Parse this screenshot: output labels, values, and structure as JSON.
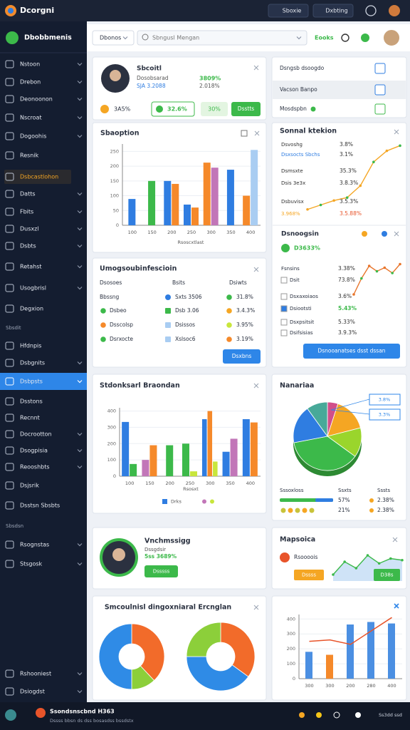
{
  "topbar": {
    "brand": "Dcorgni",
    "buttons": [
      "Sboxie",
      "Dxbting"
    ]
  },
  "header": {
    "tab": "Dbonos",
    "search": "Sbngusl Mengan",
    "status": "Eooks"
  },
  "sidebar": {
    "title": "Dbobbmenis",
    "items": [
      "Nstoon",
      "Drebon",
      "Deonoonon",
      "Nscroat",
      "Dogoohis",
      "Resnik",
      "Dsbcastlohon",
      "Datts",
      "Fbits",
      "Dusxzl",
      "Dsbts",
      "Retahst",
      "Usogbrisl",
      "Degxion"
    ],
    "section1": "Sbsdit",
    "items2": [
      "Hfdnpis",
      "Dsbgnits",
      "Dsbpsts",
      "Dsstons",
      "Recnnt",
      "Docrootton",
      "Dsogpisia",
      "Reooshbts",
      "Dsjsrik",
      "Dsstsn Sbsbts"
    ],
    "section2": "Sbsdsn",
    "items3": [
      "Rsognstas",
      "Stsgosk"
    ],
    "footer": [
      "Rshooniest",
      "Dsiogdst"
    ]
  },
  "profile_card": {
    "name": "Sbcoitl",
    "line1": "Dosobsarad",
    "line2": "SJA 3.2088",
    "stat1": "3809%",
    "stat2": "2.018%",
    "chips": [
      "3A5%",
      "32.6%",
      "30%",
      "Dsstts"
    ]
  },
  "quick_card": {
    "rows": [
      "Dsngsb dsoogdo",
      "Vacson Banpo",
      "Mosdspbn"
    ]
  },
  "signal_card": {
    "title": "Sonnal ktekion",
    "rows": [
      [
        "Dsvoshg",
        "3.8%"
      ],
      [
        "Dsxsocts Sbchs",
        "3.1%"
      ],
      [
        "Dsmsxte",
        "35.3%"
      ],
      [
        "Dsis 3e3x",
        "3.8.3%"
      ],
      [
        "Dsbuvisx",
        "3.5.3%"
      ],
      [
        "3.968%",
        "3.5.88%"
      ]
    ],
    "section": "Dsnoogsin",
    "section_stat": "D3633%",
    "rows2": [
      [
        "Fsnsins",
        "3.38%"
      ],
      [
        "Dsit",
        "73.8%"
      ],
      [
        "Dsxaxoiaos",
        "3.6%"
      ],
      [
        "Dsiootsti",
        "5.43%"
      ],
      [
        "Dsxpsitsit",
        "5.33%"
      ],
      [
        "Dsifsisias",
        "3.9.3%"
      ]
    ],
    "button": "Dsnooanatses dsst dssan"
  },
  "table_card": {
    "title": "Umogsoubinfescioin",
    "headers": [
      "Dsosoes",
      "Bsits",
      "Dsiwts"
    ],
    "rows": [
      [
        "Bbssng",
        "Sxts 3506",
        "31.8%"
      ],
      [
        "Dsbeo",
        "Dsb 3.06",
        "3.4.3%"
      ],
      [
        "Dsscolsp",
        "Dsissos",
        "3.95%"
      ],
      [
        "Dsrxocte",
        "Xslsoc6",
        "3.19%"
      ]
    ],
    "button": "Dsxbns"
  },
  "pie_card": {
    "title": "Nanariaa",
    "callouts": [
      "3.8%",
      "3.3%"
    ],
    "headers": [
      "Sssoxloss",
      "Ssxts",
      "Sssts"
    ],
    "rows": [
      [
        "57%",
        "2.38%"
      ],
      [
        "21%",
        "2.38%"
      ]
    ]
  },
  "person_card": {
    "title": "Vnchmssigg",
    "sub": "Dssgdsir",
    "stat": "5ss 3689%",
    "button": "Dsssss"
  },
  "map_card": {
    "title": "Mapsoica",
    "stat": "Rsoooois",
    "button1": "Dssss",
    "button2": "D38s"
  },
  "donut_card": {
    "title": "Smcoulnisl dingoxniaral Ercnglan"
  },
  "bottombar": {
    "title": "Ssondsnscbnd H363",
    "sub": "Dssss bbsn ds dss bosasdss bssdstx",
    "right": "Ss3dd ssd"
  },
  "chart_data": [
    {
      "type": "bar",
      "title": "Sbaoption",
      "x_label": "Rsoscxtlast",
      "categories": [
        "100",
        "150",
        "200",
        "250",
        "300",
        "350",
        "400"
      ],
      "ylim": [
        0,
        275
      ],
      "yticks": [
        0,
        50,
        100,
        150,
        200,
        250
      ],
      "series": [
        {
          "color": "#2f7de1",
          "values": [
            89,
            null,
            150,
            70,
            null,
            188,
            null
          ]
        },
        {
          "color": "#3cb94a",
          "values": [
            null,
            150,
            null,
            null,
            null,
            null,
            null
          ]
        },
        {
          "color": "#f5892a",
          "values": [
            null,
            null,
            140,
            60,
            212,
            null,
            100
          ]
        },
        {
          "color": "#c276b8",
          "values": [
            null,
            null,
            null,
            null,
            195,
            null,
            null
          ]
        },
        {
          "color": "#a9cdf2",
          "values": [
            null,
            null,
            null,
            null,
            null,
            null,
            255
          ]
        }
      ]
    },
    {
      "type": "line",
      "categories": [
        null,
        null,
        null,
        null,
        null,
        null,
        null,
        null
      ],
      "ylim": [
        0,
        100
      ],
      "series": [
        {
          "color": "#f5a623",
          "values": [
            6,
            12,
            18,
            22,
            38,
            70,
            85,
            92
          ]
        }
      ]
    },
    {
      "type": "bar",
      "title": "Stdonksarl Braondan",
      "x_label": "Rsosxt",
      "legend": "Drks",
      "categories": [
        "100",
        "150",
        "200",
        "250",
        "300",
        "350",
        "400"
      ],
      "ylim": [
        0,
        420
      ],
      "yticks": [
        0,
        100,
        200,
        300,
        400
      ],
      "series": [
        {
          "color": "#2f7de1",
          "values": [
            333,
            null,
            null,
            null,
            350,
            150,
            350
          ]
        },
        {
          "color": "#3cb94a",
          "values": [
            75,
            null,
            190,
            200,
            null,
            null,
            null
          ]
        },
        {
          "color": "#c276b8",
          "values": [
            null,
            100,
            null,
            null,
            null,
            230,
            null
          ]
        },
        {
          "color": "#f5892a",
          "values": [
            null,
            190,
            null,
            null,
            400,
            null,
            330
          ]
        },
        {
          "color": "#c8e63c",
          "values": [
            null,
            null,
            null,
            30,
            90,
            null,
            null
          ]
        }
      ]
    },
    {
      "type": "pie",
      "values": [
        5,
        16,
        14,
        37,
        18,
        10
      ],
      "colors": [
        "#d14f8a",
        "#f5a623",
        "#9ad52c",
        "#3cb94a",
        "#2f7de1",
        "#48a999"
      ]
    },
    {
      "type": "line",
      "categories": [
        null,
        null,
        null,
        null,
        null,
        null,
        null
      ],
      "ylim": [
        0,
        100
      ],
      "series": [
        {
          "color": "#e8742a",
          "values": [
            10,
            55,
            90,
            75,
            85,
            70,
            95
          ]
        }
      ]
    },
    {
      "type": "line",
      "area": true,
      "categories": [
        null,
        null,
        null,
        null,
        null,
        null,
        null
      ],
      "ylim": [
        0,
        100
      ],
      "series": [
        {
          "color": "#3cb94a",
          "values": [
            20,
            60,
            40,
            80,
            55,
            70,
            65
          ]
        }
      ]
    },
    {
      "type": "pie",
      "donut": true,
      "values": [
        38,
        12,
        50
      ],
      "colors": [
        "#f26b2a",
        "#8ccf3a",
        "#2f8be6"
      ]
    },
    {
      "type": "pie",
      "donut": true,
      "values": [
        35,
        40,
        25
      ],
      "colors": [
        "#f26b2a",
        "#2f8be6",
        "#8ccf3a"
      ]
    },
    {
      "type": "bar",
      "categories": [
        "300",
        "300",
        "200",
        "280",
        "400"
      ],
      "ylim": [
        0,
        430
      ],
      "yticks": [
        0,
        100,
        200,
        300,
        400
      ],
      "series": [
        {
          "color": "#4b8fe2",
          "values": [
            180,
            null,
            363,
            380,
            370
          ]
        },
        {
          "color": "#f5892a",
          "values": [
            null,
            160,
            null,
            null,
            null
          ]
        },
        {
          "type": "line",
          "color": "#e8542a",
          "values": [
            250,
            260,
            230,
            320,
            410
          ]
        }
      ]
    }
  ]
}
